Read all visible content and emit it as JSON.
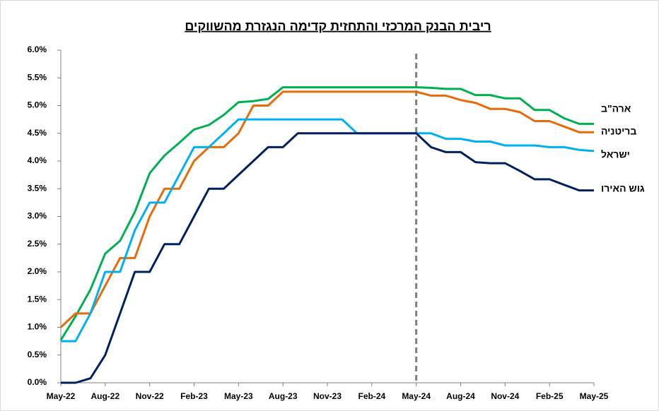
{
  "chart_data": {
    "type": "line",
    "title": "ריבית הבנק המרכזי והתחזית קדימה הנגזרת מהשווקים",
    "categories": [
      "May-22",
      null,
      null,
      "Aug-22",
      null,
      null,
      "Nov-22",
      null,
      null,
      "Feb-23",
      null,
      null,
      "May-23",
      null,
      null,
      "Aug-23",
      null,
      null,
      "Nov-23",
      null,
      null,
      "Feb-24",
      null,
      null,
      "May-24",
      null,
      null,
      "Aug-24",
      null,
      null,
      "Nov-24",
      null,
      null,
      "Feb-25",
      null,
      null,
      "May-25"
    ],
    "series": [
      {
        "name": "ארה\"ב",
        "color": "#00b050",
        "values": [
          0.77,
          1.2,
          1.68,
          2.33,
          2.56,
          3.08,
          3.78,
          4.1,
          4.33,
          4.57,
          4.65,
          4.83,
          5.06,
          5.08,
          5.12,
          5.33,
          5.33,
          5.33,
          5.33,
          5.33,
          5.33,
          5.33,
          5.33,
          5.33,
          5.33,
          5.32,
          5.3,
          5.3,
          5.19,
          5.19,
          5.13,
          5.13,
          4.92,
          4.92,
          4.77,
          4.67,
          4.67
        ]
      },
      {
        "name": "בריטניה",
        "color": "#e46c0a",
        "values": [
          1.0,
          1.25,
          1.25,
          1.75,
          2.25,
          2.25,
          3.0,
          3.5,
          3.5,
          4.0,
          4.25,
          4.25,
          4.5,
          5.0,
          5.0,
          5.25,
          5.25,
          5.25,
          5.25,
          5.25,
          5.25,
          5.25,
          5.25,
          5.25,
          5.25,
          5.18,
          5.18,
          5.1,
          5.05,
          4.94,
          4.94,
          4.88,
          4.72,
          4.72,
          4.62,
          4.52,
          4.52
        ]
      },
      {
        "name": "ישראל",
        "color": "#00b0f0",
        "values": [
          0.75,
          0.75,
          1.25,
          2.0,
          2.0,
          2.75,
          3.25,
          3.25,
          3.75,
          4.25,
          4.25,
          4.5,
          4.75,
          4.75,
          4.75,
          4.75,
          4.75,
          4.75,
          4.75,
          4.75,
          4.5,
          4.5,
          4.5,
          4.5,
          4.5,
          4.5,
          4.4,
          4.4,
          4.35,
          4.35,
          4.28,
          4.28,
          4.28,
          4.25,
          4.25,
          4.2,
          4.18
        ]
      },
      {
        "name": "גוש האירו",
        "color": "#002060",
        "values": [
          0,
          0,
          0.08,
          0.5,
          1.25,
          2.0,
          2.0,
          2.5,
          2.5,
          3.0,
          3.5,
          3.5,
          3.75,
          4.0,
          4.25,
          4.25,
          4.5,
          4.5,
          4.5,
          4.5,
          4.5,
          4.5,
          4.5,
          4.5,
          4.5,
          4.25,
          4.16,
          4.16,
          3.98,
          3.96,
          3.96,
          3.82,
          3.67,
          3.67,
          3.57,
          3.47,
          3.47
        ]
      }
    ],
    "ylim": [
      0,
      6
    ],
    "yticks": [
      {
        "value": 0,
        "label": "0.0%"
      },
      {
        "value": 0.5,
        "label": "0.5%"
      },
      {
        "value": 1,
        "label": "1.0%"
      },
      {
        "value": 1.5,
        "label": "1.5%"
      },
      {
        "value": 2,
        "label": "2.0%"
      },
      {
        "value": 2.5,
        "label": "2.5%"
      },
      {
        "value": 3,
        "label": "3.0%"
      },
      {
        "value": 3.5,
        "label": "3.5%"
      },
      {
        "value": 4,
        "label": "4.0%"
      },
      {
        "value": 4.5,
        "label": "4.5%"
      },
      {
        "value": 5,
        "label": "5.0%"
      },
      {
        "value": 5.5,
        "label": "5.5%"
      },
      {
        "value": 6,
        "label": "6.0%"
      }
    ],
    "grid": false
  }
}
